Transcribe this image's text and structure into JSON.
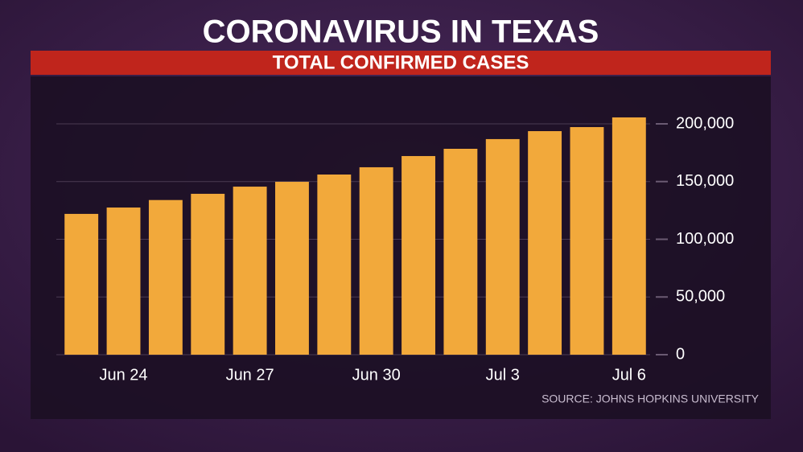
{
  "chart_data": {
    "type": "bar",
    "title": "CORONAVIRUS IN TEXAS",
    "subtitle": "TOTAL CONFIRMED CASES",
    "source": "SOURCE: JOHNS HOPKINS UNIVERSITY",
    "categories": [
      null,
      "Jun 24",
      null,
      null,
      "Jun 27",
      null,
      null,
      "Jun 30",
      null,
      null,
      "Jul 3",
      null,
      null,
      "Jul 6"
    ],
    "values": [
      122000,
      127500,
      134000,
      139400,
      145600,
      149800,
      156100,
      162400,
      172100,
      178400,
      186800,
      193700,
      197200,
      205600
    ],
    "color": "#f2a93b",
    "ylim": [
      0,
      200000
    ],
    "yticks": [
      0,
      {
        "value": 50000,
        "label": "50,000"
      },
      {
        "value": 100000,
        "label": "100,000"
      },
      {
        "value": 150000,
        "label": "150,000"
      },
      {
        "value": 200000,
        "label": "200,000"
      }
    ],
    "grid": true
  }
}
